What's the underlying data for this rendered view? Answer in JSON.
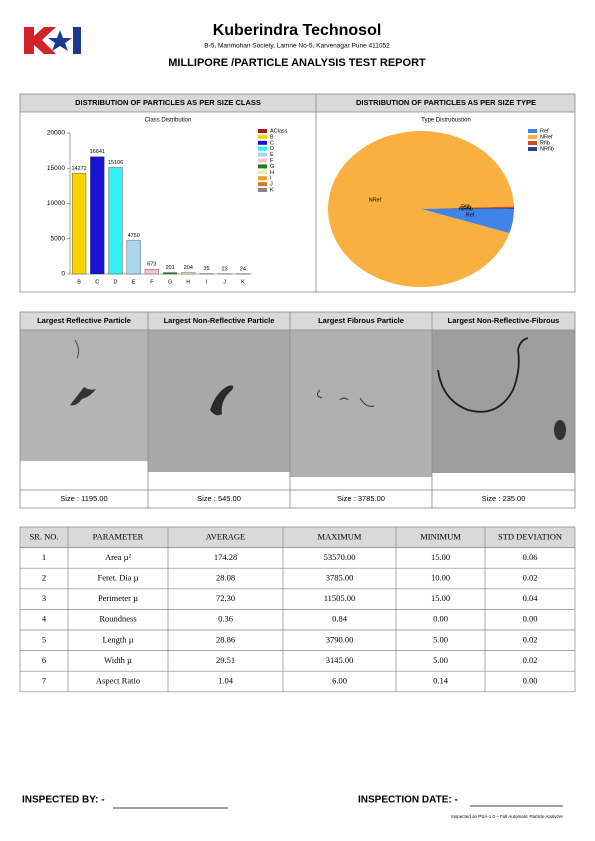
{
  "header": {
    "company": "Kuberindra Technosol",
    "address": "B-5, Manmohan Society, Lamne No-5, Karvenagar Pune 411052",
    "title": "MILLIPORE /PARTICLE ANALYSIS TEST REPORT"
  },
  "chart_data": [
    {
      "type": "bar",
      "panel_title": "DISTRIBUTION OF PARTICLES AS PER SIZE CLASS",
      "title": "Class Distribution",
      "categories": [
        "B",
        "C",
        "D",
        "E",
        "F",
        "G",
        "H",
        "I",
        "J",
        "K"
      ],
      "values": [
        14272,
        16641,
        15106,
        4750,
        673,
        201,
        204,
        35,
        23,
        24
      ],
      "colors": [
        "#f5d400",
        "#1414d2",
        "#33f0f5",
        "#a9d6ef",
        "#f6c4cc",
        "#1d7d1d",
        "#eeeeaa",
        "#f0a030",
        "#e07a20",
        "#888888"
      ],
      "ylim": [
        0,
        20000
      ],
      "yticks": [
        0,
        5000,
        10000,
        15000,
        20000
      ],
      "legend": [
        {
          "name": "AClass",
          "color": "#a01a2a"
        },
        {
          "name": "B",
          "color": "#f5d400"
        },
        {
          "name": "C",
          "color": "#1414d2"
        },
        {
          "name": "D",
          "color": "#33f0f5"
        },
        {
          "name": "E",
          "color": "#a9d6ef"
        },
        {
          "name": "F",
          "color": "#f6c4cc"
        },
        {
          "name": "G",
          "color": "#1d7d1d"
        },
        {
          "name": "H",
          "color": "#eeeeaa"
        },
        {
          "name": "I",
          "color": "#f0a030"
        },
        {
          "name": "J",
          "color": "#e07a20"
        },
        {
          "name": "K",
          "color": "#888888"
        }
      ]
    },
    {
      "type": "pie",
      "panel_title": "DISTRIBUTION OF PARTICLES AS PER SIZE TYPE",
      "title": "Type Distrubustion",
      "categories": [
        "Ref",
        "NRef",
        "Rfib",
        "NRfib"
      ],
      "values": [
        5,
        94.5,
        0.3,
        0.2
      ],
      "colors": [
        "#3f84e8",
        "#f8b040",
        "#d24a1e",
        "#2a3f8a"
      ]
    }
  ],
  "images": [
    {
      "title": "Largest Reflective Particle",
      "size": "Size : 1195.00"
    },
    {
      "title": "Largest Non-Reflective Particle",
      "size": "Size : 545.00"
    },
    {
      "title": "Largest Fibrous Particle",
      "size": "Size : 3785.00"
    },
    {
      "title": "Largest Non-Reflective-Fibrous",
      "size": "Size : 235.00"
    }
  ],
  "table": {
    "columns": [
      "SR. NO.",
      "PARAMETER",
      "AVERAGE",
      "MAXIMUM",
      "MINIMUM",
      "STD DEVIATION"
    ],
    "rows": [
      [
        "1",
        "Area µ²",
        "174.28",
        "53570.00",
        "15.00",
        "0.06"
      ],
      [
        "2",
        "Feret. Dia µ",
        "28.08",
        "3785.00",
        "10.00",
        "0.02"
      ],
      [
        "3",
        "Perimeter µ",
        "72.30",
        "11505.00",
        "15.00",
        "0.04"
      ],
      [
        "4",
        "Roundness",
        "0.36",
        "0.84",
        "0.00",
        "0.00"
      ],
      [
        "5",
        "Length µ",
        "28.86",
        "3790.00",
        "5.00",
        "0.02"
      ],
      [
        "6",
        "Width µ",
        "29.51",
        "3145.00",
        "5.00",
        "0.02"
      ],
      [
        "7",
        "Aspect Ratio",
        "1.04",
        "6.00",
        "0.14",
        "0.00"
      ]
    ]
  },
  "footer": {
    "inspected_by": "INSPECTED BY: -",
    "inspection_date": "INSPECTION DATE: -",
    "note": "Inspected on PSA-1.0 – Full Automatic Particle Analyzer"
  }
}
